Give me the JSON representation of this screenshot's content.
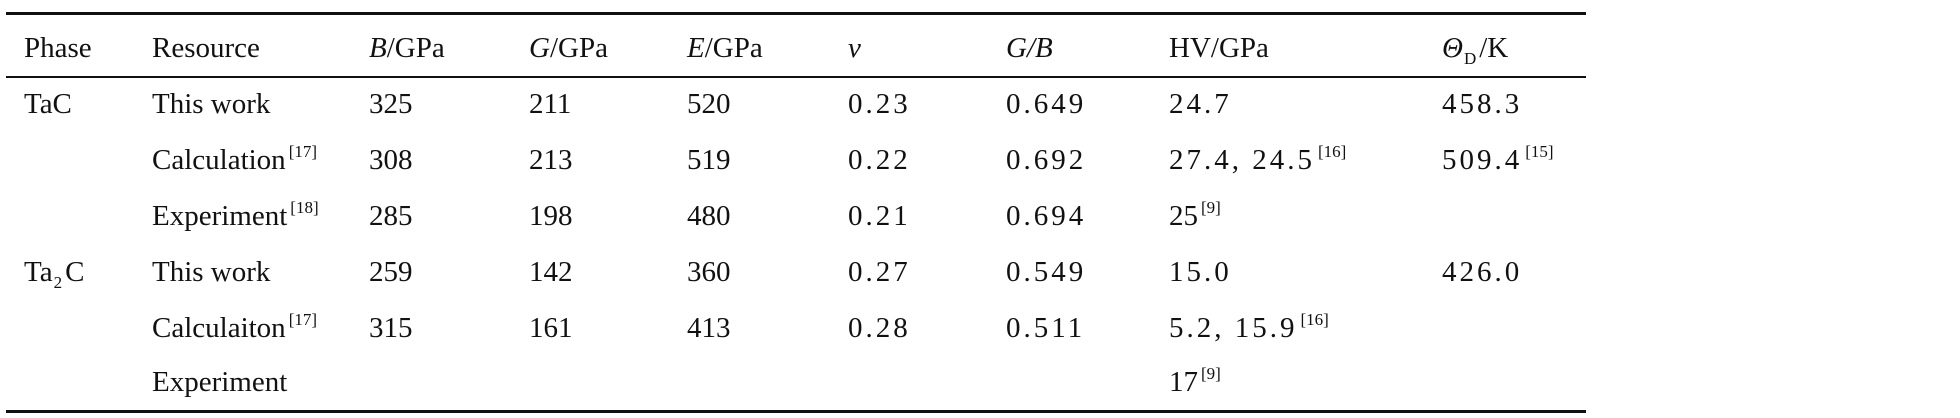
{
  "header": {
    "phase": "Phase",
    "resource": "Resource",
    "b_sym": "B",
    "b_unit": "/GPa",
    "g_sym": "G",
    "g_unit": "/GPa",
    "e_sym": "E",
    "e_unit": "/GPa",
    "nu": "ν",
    "gb": "G/B",
    "hv": "HV/GPa",
    "theta_sym": "Θ",
    "theta_sub": "D",
    "theta_unit": "/K"
  },
  "rows": [
    {
      "phase": "TaC",
      "phase_base": "",
      "phase_sub": "",
      "phase_tail": "",
      "resource": "This work",
      "resource_ref": "",
      "B": "325",
      "G": "211",
      "E": "520",
      "nu": "0.23",
      "GB": "0.649",
      "HV": "24.7",
      "HV_ref": "",
      "theta": "458.3",
      "theta_ref": ""
    },
    {
      "phase": "",
      "phase_base": "",
      "phase_sub": "",
      "phase_tail": "",
      "resource": "Calculation",
      "resource_ref": "[17]",
      "B": "308",
      "G": "213",
      "E": "519",
      "nu": "0.22",
      "GB": "0.692",
      "HV": "27.4, 24.5",
      "HV_ref": "[16]",
      "theta": "509.4",
      "theta_ref": "[15]"
    },
    {
      "phase": "",
      "phase_base": "",
      "phase_sub": "",
      "phase_tail": "",
      "resource": "Experiment",
      "resource_ref": "[18]",
      "B": "285",
      "G": "198",
      "E": "480",
      "nu": "0.21",
      "GB": "0.694",
      "HV": "25",
      "HV_ref": "[9]",
      "theta": "",
      "theta_ref": ""
    },
    {
      "phase": "",
      "phase_base": "Ta",
      "phase_sub": "2",
      "phase_tail": "C",
      "resource": "This work",
      "resource_ref": "",
      "B": "259",
      "G": "142",
      "E": "360",
      "nu": "0.27",
      "GB": "0.549",
      "HV": "15.0",
      "HV_ref": "",
      "theta": "426.0",
      "theta_ref": ""
    },
    {
      "phase": "",
      "phase_base": "",
      "phase_sub": "",
      "phase_tail": "",
      "resource": "Calculaiton",
      "resource_ref": "[17]",
      "B": "315",
      "G": "161",
      "E": "413",
      "nu": "0.28",
      "GB": "0.511",
      "HV": "5.2, 15.9",
      "HV_ref": "[16]",
      "theta": "",
      "theta_ref": ""
    },
    {
      "phase": "",
      "phase_base": "",
      "phase_sub": "",
      "phase_tail": "",
      "resource": "Experiment",
      "resource_ref": "",
      "B": "",
      "G": "",
      "E": "",
      "nu": "",
      "GB": "",
      "HV": "17",
      "HV_ref": "[9]",
      "theta": "",
      "theta_ref": ""
    }
  ]
}
